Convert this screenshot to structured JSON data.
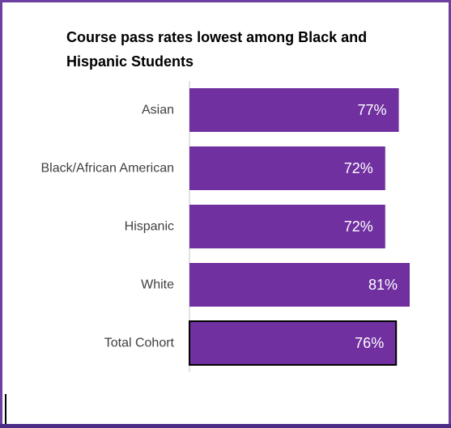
{
  "chart_data": {
    "type": "bar",
    "orientation": "horizontal",
    "title": "Course pass rates lowest among Black and Hispanic Students",
    "categories": [
      "Asian",
      "Black/African American",
      "Hispanic",
      "White",
      "Total Cohort"
    ],
    "values": [
      77,
      72,
      72,
      81,
      76
    ],
    "value_labels": [
      "77%",
      "72%",
      "72%",
      "81%",
      "76%"
    ],
    "xlim": [
      0,
      81
    ],
    "grid": false,
    "legend": "none",
    "bar_color": "#7030a0",
    "highlight_outline_color": "#000000",
    "highlighted_category": "Total Cohort",
    "axis_color": "#d9d9d9"
  }
}
